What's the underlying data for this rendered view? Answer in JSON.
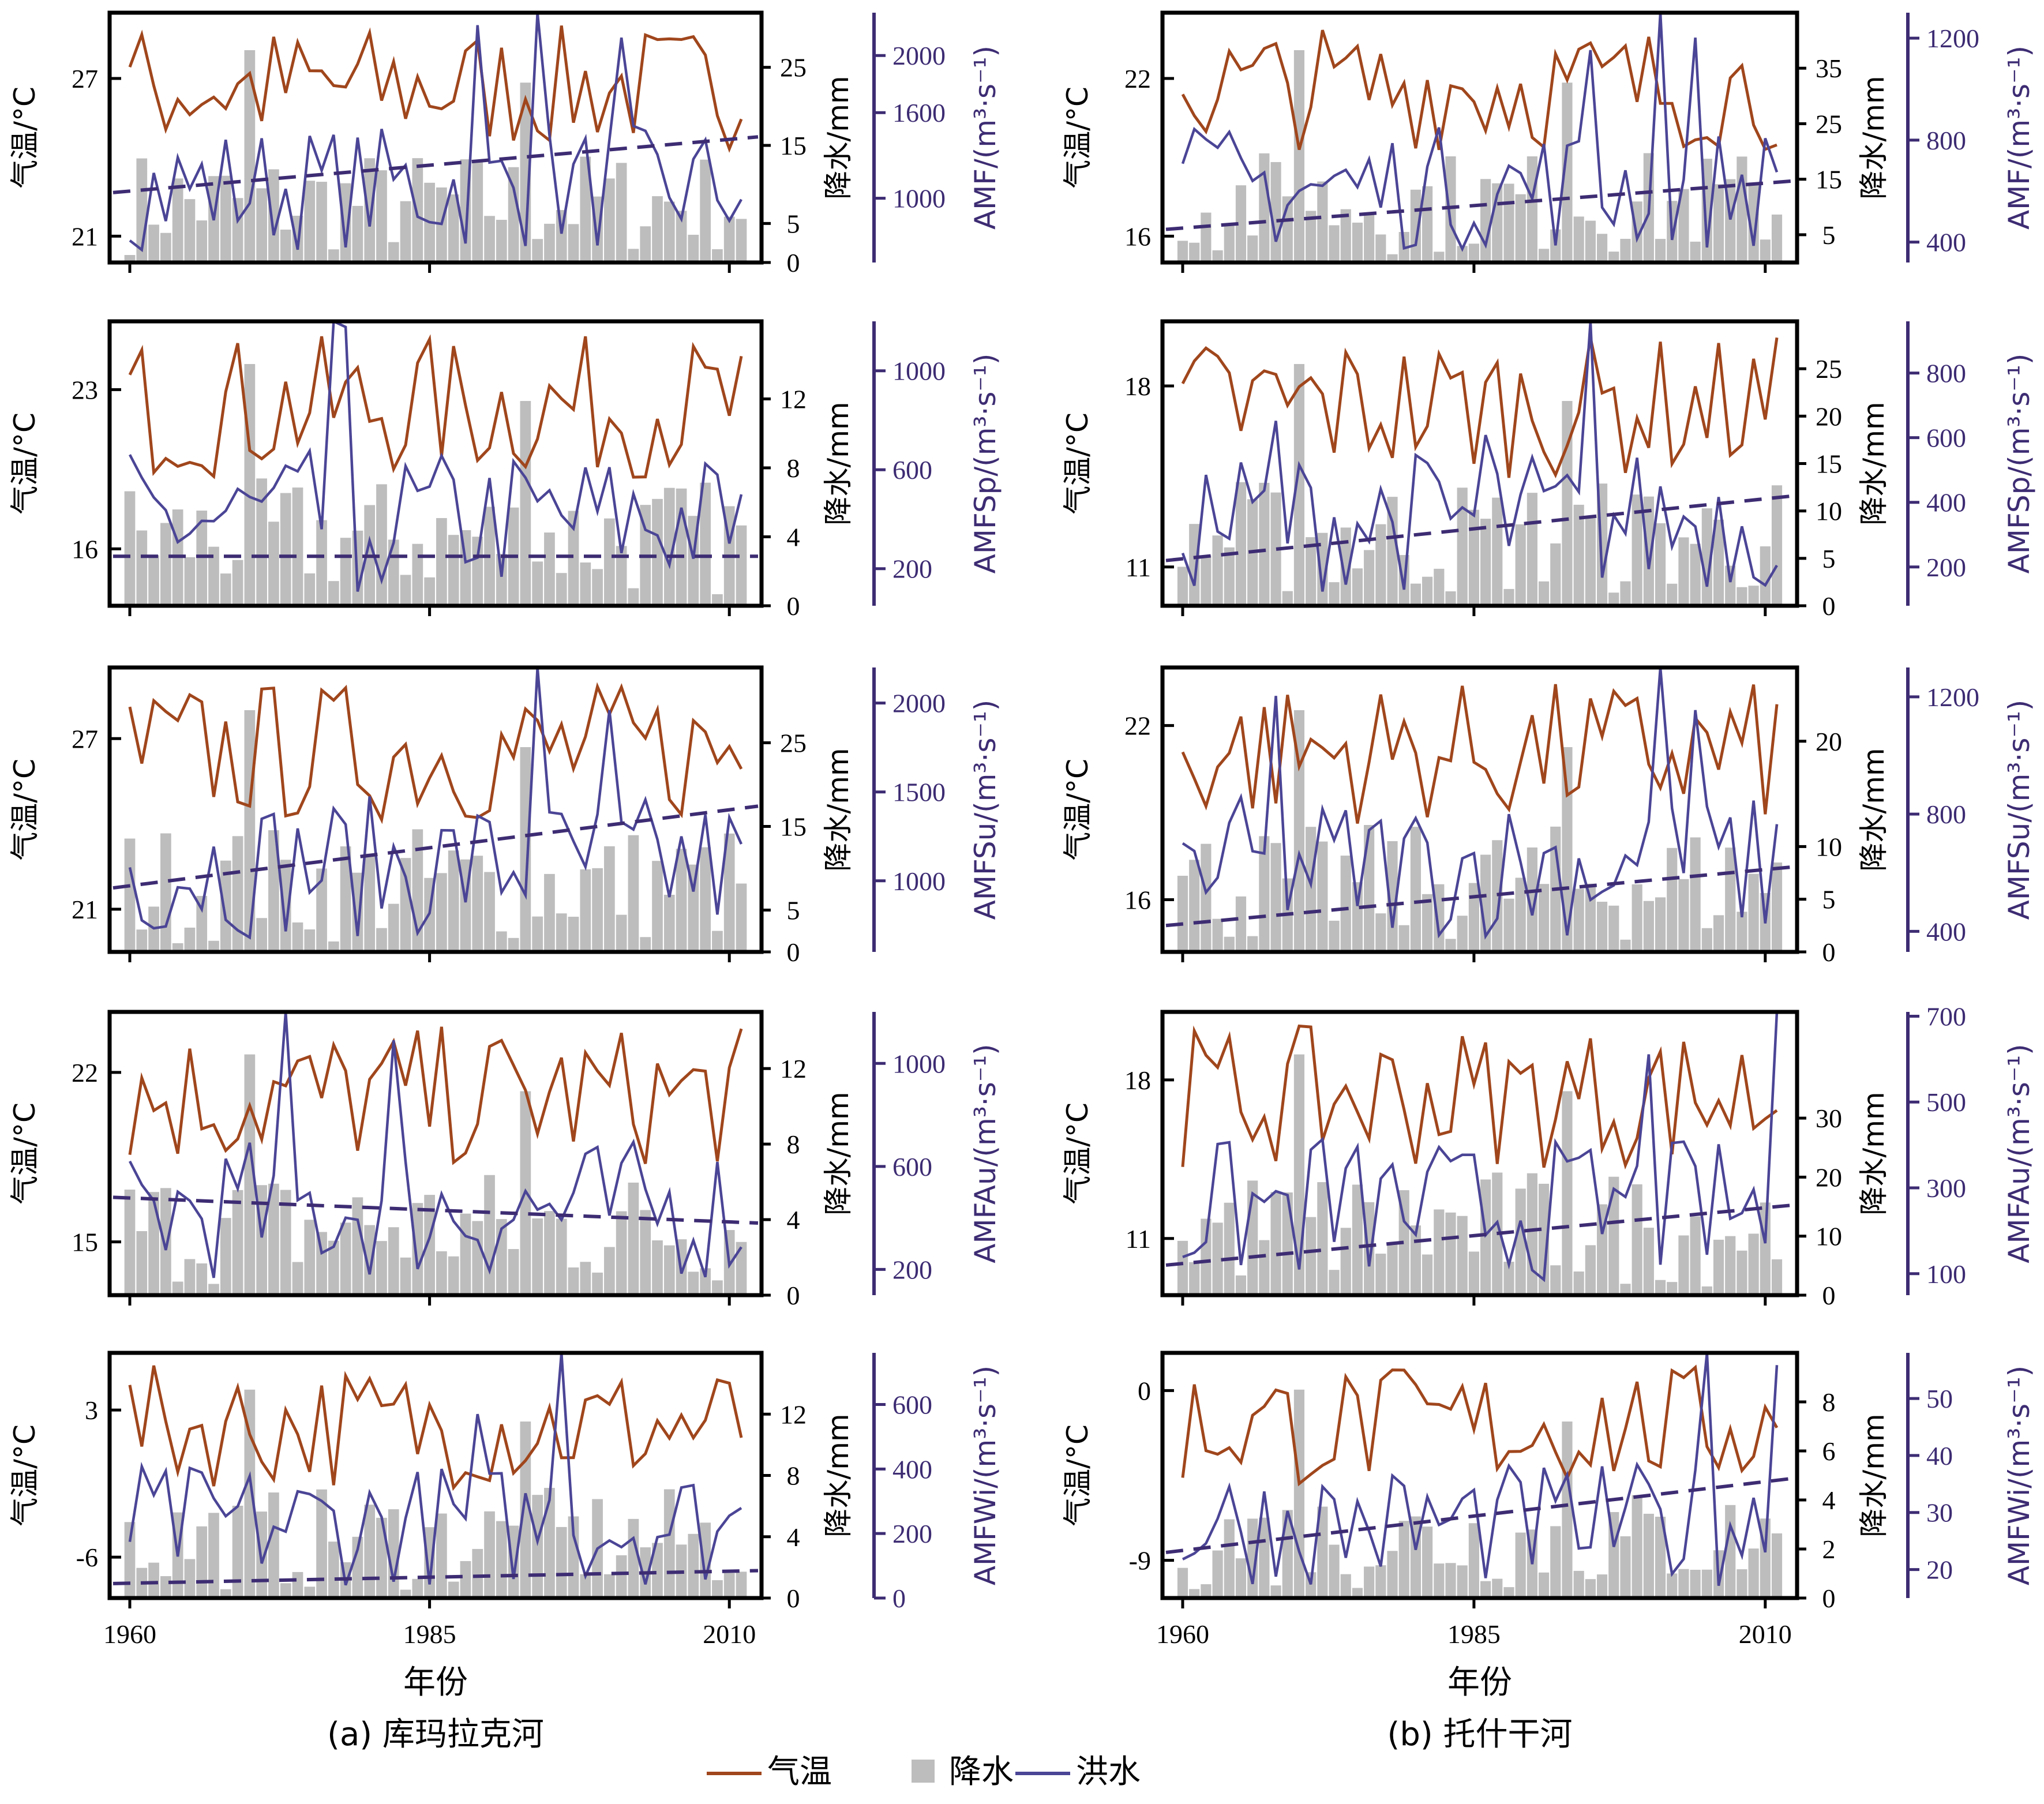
{
  "colors": {
    "temp": "#a0461c",
    "precip": "#bdbdbd",
    "flood": "#4b4596",
    "axis": "#000000",
    "flood_axis": "#3d2c73"
  },
  "legend": [
    {
      "label": "气温",
      "kind": "line",
      "color": "#a0461c"
    },
    {
      "label": "降水",
      "kind": "square",
      "color": "#bdbdbd"
    },
    {
      "label": "洪水",
      "kind": "line",
      "color": "#4b4596"
    }
  ],
  "x_axis": {
    "label": "年份",
    "ticks": [
      1960,
      1985,
      2010
    ]
  },
  "chart_data": [
    {
      "type": "line",
      "panel": "a-1",
      "t_label": "气温/°C",
      "t_ticks": [
        21,
        27
      ],
      "t_range": [
        20,
        29.5
      ],
      "p_label": "降水/mm",
      "p_ticks": [
        0,
        5,
        15,
        25
      ],
      "p_range": [
        0,
        32
      ],
      "f_label": "AMF/(m³·s⁻¹)",
      "f_ticks": [
        1000,
        1600,
        2000
      ],
      "f_range": [
        550,
        2300
      ],
      "f_trend": [
        1040,
        1430
      ]
    },
    {
      "type": "line",
      "panel": "a-2",
      "t_label": "气温/°C",
      "t_ticks": [
        16,
        23
      ],
      "t_range": [
        13.5,
        26
      ],
      "p_label": "降水/mm",
      "p_ticks": [
        0,
        4,
        8,
        12
      ],
      "p_range": [
        0,
        16.5
      ],
      "f_label": "AMFSp/(m³·s⁻¹)",
      "f_ticks": [
        200,
        600,
        1000
      ],
      "f_range": [
        50,
        1200
      ],
      "f_trend": [
        250,
        250
      ]
    },
    {
      "type": "line",
      "panel": "a-3",
      "t_label": "气温/°C",
      "t_ticks": [
        21,
        27
      ],
      "t_range": [
        19.5,
        29.5
      ],
      "p_label": "降水/mm",
      "p_ticks": [
        0,
        5,
        15,
        25
      ],
      "p_range": [
        0,
        34
      ],
      "f_label": "AMFSu/(m³·s⁻¹)",
      "f_ticks": [
        1000,
        1500,
        2000
      ],
      "f_range": [
        600,
        2200
      ],
      "f_trend": [
        960,
        1420
      ]
    },
    {
      "type": "line",
      "panel": "a-4",
      "t_label": "气温/°C",
      "t_ticks": [
        15,
        22
      ],
      "t_range": [
        12.8,
        24.5
      ],
      "p_label": "降水/mm",
      "p_ticks": [
        0,
        4,
        8,
        12
      ],
      "p_range": [
        0,
        15
      ],
      "f_label": "AMFAu/(m³·s⁻¹)",
      "f_ticks": [
        200,
        600,
        1000
      ],
      "f_range": [
        100,
        1200
      ],
      "f_trend": [
        480,
        380
      ]
    },
    {
      "type": "line",
      "panel": "a-5",
      "t_label": "气温/°C",
      "t_ticks": [
        -6,
        3
      ],
      "t_range": [
        -8.5,
        6.5
      ],
      "p_label": "降水/mm",
      "p_ticks": [
        0,
        4,
        8,
        12
      ],
      "p_range": [
        0,
        16
      ],
      "f_label": "AMFWi/(m³·s⁻¹)",
      "f_ticks": [
        0,
        200,
        400,
        600
      ],
      "f_range": [
        0,
        760
      ],
      "f_trend": [
        45,
        85
      ]
    },
    {
      "type": "line",
      "panel": "b-1",
      "t_label": "气温/°C",
      "t_ticks": [
        16,
        22
      ],
      "t_range": [
        15,
        24.5
      ],
      "p_label": "降水/mm",
      "p_ticks": [
        5,
        15,
        25,
        35
      ],
      "p_range": [
        0,
        45
      ],
      "f_label": "AMF/(m³·s⁻¹)",
      "f_ticks": [
        400,
        800,
        1200
      ],
      "f_range": [
        320,
        1300
      ],
      "f_trend": [
        450,
        640
      ]
    },
    {
      "type": "line",
      "panel": "b-2",
      "t_label": "气温/°C",
      "t_ticks": [
        11,
        18
      ],
      "t_range": [
        9.5,
        20.5
      ],
      "p_label": "降水/mm",
      "p_ticks": [
        0,
        5,
        10,
        15,
        20,
        25
      ],
      "p_range": [
        0,
        30
      ],
      "f_label": "AMFSp/(m³·s⁻¹)",
      "f_ticks": [
        200,
        400,
        600,
        800
      ],
      "f_range": [
        80,
        960
      ],
      "f_trend": [
        220,
        420
      ]
    },
    {
      "type": "line",
      "panel": "b-3",
      "t_label": "气温/°C",
      "t_ticks": [
        16,
        22
      ],
      "t_range": [
        14.2,
        24
      ],
      "p_label": "降水/mm",
      "p_ticks": [
        0,
        5,
        10,
        20
      ],
      "p_range": [
        0,
        27
      ],
      "f_label": "AMFSu/(m³·s⁻¹)",
      "f_ticks": [
        400,
        800,
        1200
      ],
      "f_range": [
        330,
        1300
      ],
      "f_trend": [
        420,
        620
      ]
    },
    {
      "type": "line",
      "panel": "b-4",
      "t_label": "气温/°C",
      "t_ticks": [
        11,
        18
      ],
      "t_range": [
        8.5,
        21
      ],
      "p_label": "降水/mm",
      "p_ticks": [
        0,
        10,
        20,
        30
      ],
      "p_range": [
        0,
        48
      ],
      "f_label": "AMFAu/(m³·s⁻¹)",
      "f_ticks": [
        100,
        300,
        500,
        700
      ],
      "f_range": [
        50,
        710
      ],
      "f_trend": [
        120,
        260
      ]
    },
    {
      "type": "line",
      "panel": "b-5",
      "t_label": "气温/°C",
      "t_ticks": [
        -9,
        0
      ],
      "t_range": [
        -11,
        2
      ],
      "p_label": "降水/mm",
      "p_ticks": [
        0,
        2,
        4,
        6,
        8
      ],
      "p_range": [
        0,
        10
      ],
      "f_label": "AMFWi/(m³·s⁻¹)",
      "f_ticks": [
        20,
        30,
        40,
        50
      ],
      "f_range": [
        15,
        58
      ],
      "f_trend": [
        23,
        36
      ]
    }
  ],
  "captions": [
    "(a) 库玛拉克河",
    "(b) 托什干河"
  ]
}
